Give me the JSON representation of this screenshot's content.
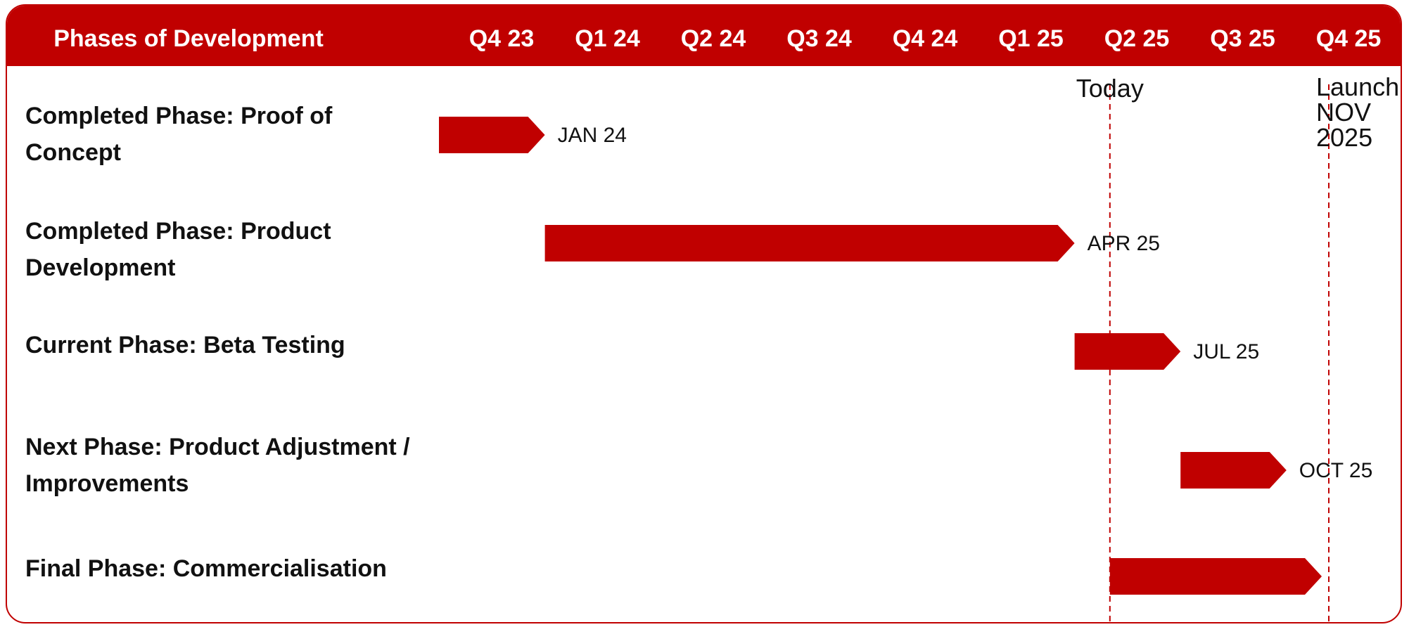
{
  "chart_data": {
    "type": "gantt",
    "title": "Phases of Development",
    "quarters": [
      "Q4 23",
      "Q1 24",
      "Q2 24",
      "Q3 24",
      "Q4 24",
      "Q1 25",
      "Q2 25",
      "Q3 25",
      "Q4 25"
    ],
    "timeline_start": "2023-10",
    "timeline_end": "2025-12",
    "phases": [
      {
        "label_lines": [
          "Completed Phase: Proof of",
          "Concept"
        ],
        "start": "2023-10",
        "end": "2024-01",
        "end_label": "JAN 24"
      },
      {
        "label_lines": [
          "Completed Phase: Product",
          "Development"
        ],
        "start": "2024-01",
        "end": "2025-04",
        "end_label": "APR 25"
      },
      {
        "label_lines": [
          "Current Phase: Beta Testing"
        ],
        "start": "2025-04",
        "end": "2025-07",
        "end_label": "JUL 25"
      },
      {
        "label_lines": [
          "Next Phase: Product Adjustment /",
          "Improvements"
        ],
        "start": "2025-07",
        "end": "2025-10",
        "end_label": "OCT 25"
      },
      {
        "label_lines": [
          "Final Phase: Commercialisation"
        ],
        "start": "2025-05",
        "end": "2025-11",
        "end_label": ""
      }
    ],
    "markers": [
      {
        "label_lines": [
          "Today"
        ],
        "date": "2025-05"
      },
      {
        "label_lines": [
          "Launch",
          "NOV",
          "2025"
        ],
        "date": "2025-11"
      }
    ],
    "colors": {
      "accent": "#c00000",
      "header_text": "#ffffff",
      "text": "#111111"
    }
  }
}
